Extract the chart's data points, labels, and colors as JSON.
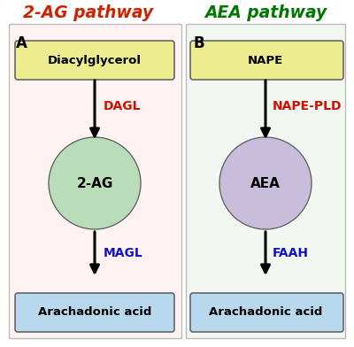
{
  "title_left": "2-AG pathway",
  "title_right": "AEA pathway",
  "title_left_color": "#cc2200",
  "title_right_color": "#007700",
  "bg_left_color": "#fff2f2",
  "bg_right_color": "#f2f7f2",
  "label_A": "A",
  "label_B": "B",
  "box_top_left_text": "Diacylglycerol",
  "box_top_right_text": "NAPE",
  "circle_left_text": "2-AG",
  "circle_right_text": "AEA",
  "box_bot_left_text": "Arachadonic acid",
  "box_bot_right_text": "Arachadonic acid",
  "enzyme_left_top": "DAGL",
  "enzyme_left_bot": "MAGL",
  "enzyme_right_top": "NAPE-PLD",
  "enzyme_right_bot": "FAAH",
  "enzyme_color_top": "#cc1100",
  "enzyme_color_bot": "#1111cc",
  "box_top_fill": "#eded90",
  "box_bot_fill": "#b8d8ee",
  "circle_left_fill": "#b8ddb8",
  "circle_right_fill": "#c8bedc",
  "border_color": "#666666",
  "panel_edge_color": "#bbbbbb",
  "figsize": [
    4.0,
    3.92
  ],
  "dpi": 100
}
